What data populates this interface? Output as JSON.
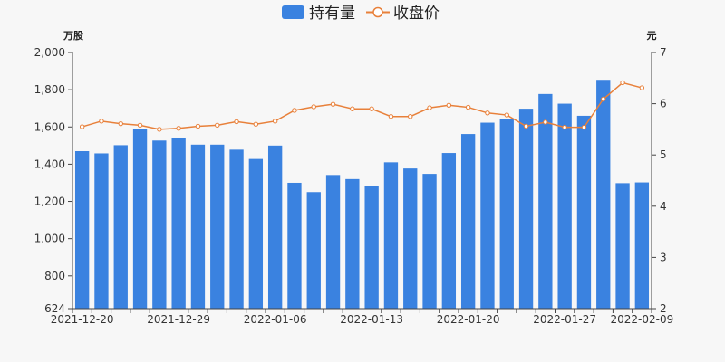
{
  "chart_data": {
    "type": "bar",
    "legend": {
      "placement": "top-center",
      "items": [
        {
          "label": "持有量",
          "kind": "bar",
          "color": "#3a82e0"
        },
        {
          "label": "收盘价",
          "kind": "line",
          "color": "#e8803a"
        }
      ]
    },
    "left_axis": {
      "unit": "万股",
      "min": 624,
      "max": 2000,
      "ticks": [
        624,
        800,
        1000,
        1200,
        1400,
        1600,
        1800,
        2000
      ],
      "tick_labels": [
        "624",
        "800",
        "1,000",
        "1,200",
        "1,400",
        "1,600",
        "1,800",
        "2,000"
      ]
    },
    "right_axis": {
      "unit": "元",
      "min": 2,
      "max": 7,
      "ticks": [
        2,
        3,
        4,
        5,
        6,
        7
      ],
      "tick_labels": [
        "2",
        "3",
        "4",
        "5",
        "6",
        "7"
      ]
    },
    "x_tick_labels": [
      {
        "index": 0,
        "label": "2021-12-20"
      },
      {
        "index": 5,
        "label": "2021-12-29"
      },
      {
        "index": 10,
        "label": "2022-01-06"
      },
      {
        "index": 15,
        "label": "2022-01-13"
      },
      {
        "index": 20,
        "label": "2022-01-20"
      },
      {
        "index": 25,
        "label": "2022-01-27"
      },
      {
        "index": 29,
        "label": "2022-02-09"
      }
    ],
    "series": [
      {
        "name": "持有量",
        "type": "bar",
        "axis": "left",
        "color": "#3a82e0",
        "values": [
          1470,
          1458,
          1502,
          1590,
          1527,
          1543,
          1505,
          1505,
          1478,
          1428,
          1500,
          1300,
          1250,
          1342,
          1320,
          1285,
          1410,
          1377,
          1348,
          1460,
          1562,
          1623,
          1643,
          1698,
          1777,
          1725,
          1660,
          1853,
          1298,
          1302
        ]
      },
      {
        "name": "收盘价",
        "type": "line",
        "axis": "right",
        "color": "#e8803a",
        "values": [
          5.55,
          5.66,
          5.61,
          5.58,
          5.5,
          5.52,
          5.56,
          5.58,
          5.65,
          5.6,
          5.66,
          5.87,
          5.94,
          5.99,
          5.9,
          5.9,
          5.75,
          5.75,
          5.92,
          5.97,
          5.93,
          5.82,
          5.78,
          5.56,
          5.64,
          5.54,
          5.54,
          6.09,
          6.41,
          6.31
        ]
      }
    ],
    "grid": false
  }
}
